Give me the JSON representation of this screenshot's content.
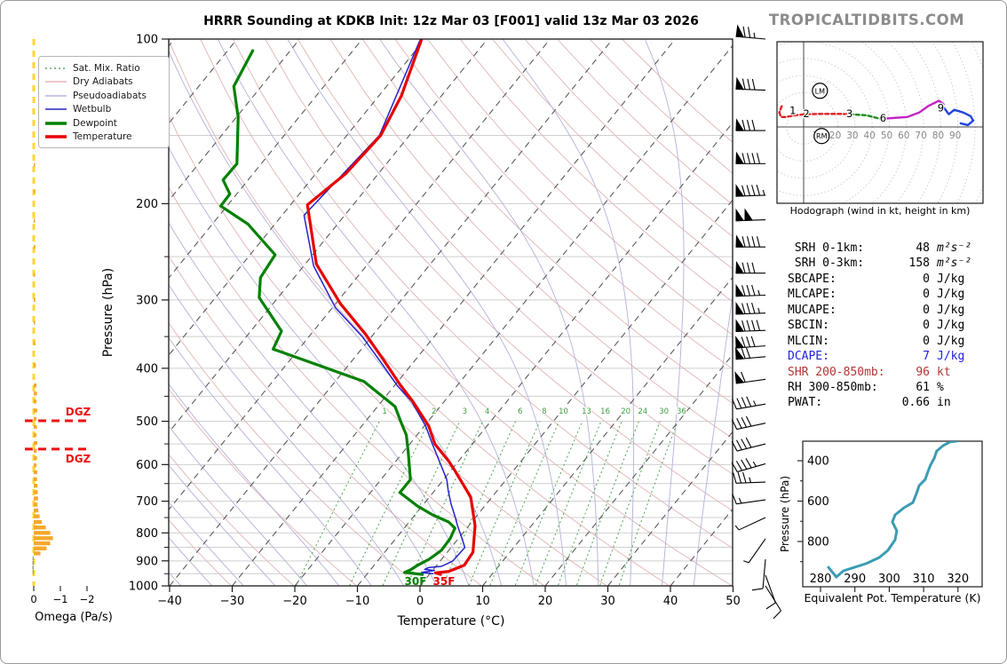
{
  "title": "HRRR Sounding at KDKB Init: 12z Mar 03 [F001] valid 13z Mar 03 2026",
  "watermark": "TROPICALTIDBITS.COM",
  "legend": {
    "items": [
      {
        "label": "Sat. Mix. Ratio",
        "color": "#3f9b3f",
        "style": "dotted",
        "width": 1.2
      },
      {
        "label": "Dry Adiabats",
        "color": "#e0a8a8",
        "style": "solid",
        "width": 1.2
      },
      {
        "label": "Pseudoadiabats",
        "color": "#a8a8d8",
        "style": "solid",
        "width": 1.2
      },
      {
        "label": "Wetbulb",
        "color": "#2222cc",
        "style": "solid",
        "width": 1.6
      },
      {
        "label": "Dewpoint",
        "color": "#008000",
        "style": "solid",
        "width": 3.4
      },
      {
        "label": "Temperature",
        "color": "#e60000",
        "style": "solid",
        "width": 3.4
      }
    ]
  },
  "stats": {
    "rows": [
      {
        "label": " SRH 0-1km:",
        "value": "48",
        "unit": "m²s⁻²",
        "color": "#000000",
        "unit_italic": true
      },
      {
        "label": " SRH 0-3km:",
        "value": "158",
        "unit": "m²s⁻²",
        "color": "#000000",
        "unit_italic": true
      },
      {
        "label": "SBCAPE:",
        "value": "0",
        "unit": "J/kg",
        "color": "#000000",
        "unit_italic": false
      },
      {
        "label": "MLCAPE:",
        "value": "0",
        "unit": "J/kg",
        "color": "#000000",
        "unit_italic": false
      },
      {
        "label": "MUCAPE:",
        "value": "0",
        "unit": "J/kg",
        "color": "#000000",
        "unit_italic": false
      },
      {
        "label": "SBCIN:",
        "value": "0",
        "unit": "J/kg",
        "color": "#000000",
        "unit_italic": false
      },
      {
        "label": "MLCIN:",
        "value": "0",
        "unit": "J/kg",
        "color": "#000000",
        "unit_italic": false
      },
      {
        "label": "DCAPE:",
        "value": "7",
        "unit": "J/kg",
        "color": "#2222dd",
        "unit_italic": false
      },
      {
        "label": "SHR 200-850mb:",
        "value": "96",
        "unit": "kt",
        "color": "#b03535",
        "unit_italic": false
      },
      {
        "label": "RH 300-850mb:",
        "value": "61",
        "unit": "%",
        "color": "#000000",
        "unit_italic": false
      },
      {
        "label": "PWAT:",
        "value": "0.66",
        "unit": "in",
        "color": "#000000",
        "unit_italic": false
      }
    ]
  },
  "chart_data": [
    {
      "id": "skewt",
      "type": "line",
      "title": "HRRR Sounding at KDKB Init: 12z Mar 03 [F001] valid 13z Mar 03 2026",
      "xlabel": "Temperature (°C)",
      "ylabel": "Pressure (hPa)",
      "x_ticks": [
        -40,
        -30,
        -20,
        -10,
        0,
        10,
        20,
        30,
        40,
        50
      ],
      "p_ticks": [
        100,
        200,
        300,
        400,
        500,
        600,
        700,
        800,
        900,
        1000
      ],
      "p_range": [
        100,
        1050
      ],
      "t_range": [
        -40,
        50
      ],
      "grid": true,
      "isotherm_step_C": 10,
      "dry_adiabat_theta_K": {
        "min": 233,
        "max": 453,
        "step": 10
      },
      "pseudoadiabat_start_C": {
        "min": -40,
        "max": 45,
        "step": 5
      },
      "mixing_ratio_gkg": [
        1,
        2,
        3,
        4,
        6,
        8,
        10,
        13,
        16,
        20,
        24,
        30,
        36
      ],
      "series": [
        {
          "name": "Temperature",
          "color": "#e60000",
          "width": 3.2,
          "points_p_T": [
            [
              100,
              -70.5
            ],
            [
              127,
              -66.4
            ],
            [
              150,
              -64.6
            ],
            [
              176,
              -65.2
            ],
            [
              201,
              -67.3
            ],
            [
              258,
              -58.2
            ],
            [
              305,
              -49.2
            ],
            [
              347,
              -41.2
            ],
            [
              388,
              -34.8
            ],
            [
              428,
              -29.3
            ],
            [
              461,
              -24.9
            ],
            [
              510,
              -19.3
            ],
            [
              550,
              -16.0
            ],
            [
              592,
              -11.5
            ],
            [
              615,
              -9.4
            ],
            [
              688,
              -3.4
            ],
            [
              776,
              1.0
            ],
            [
              868,
              4.1
            ],
            [
              917,
              4.4
            ],
            [
              941,
              2.7
            ],
            [
              947,
              0.8
            ],
            [
              953,
              1.8
            ]
          ]
        },
        {
          "name": "Dewpoint",
          "color": "#008000",
          "width": 3.2,
          "points_p_T": [
            [
              105,
              -96.0
            ],
            [
              122,
              -94.4
            ],
            [
              139,
              -89.7
            ],
            [
              169,
              -83.9
            ],
            [
              181,
              -84.0
            ],
            [
              192,
              -81.1
            ],
            [
              202,
              -81.0
            ],
            [
              218,
              -74.3
            ],
            [
              248,
              -66.0
            ],
            [
              273,
              -65.4
            ],
            [
              297,
              -63.0
            ],
            [
              342,
              -55.1
            ],
            [
              369,
              -54.1
            ],
            [
              400,
              -43.0
            ],
            [
              423,
              -35.4
            ],
            [
              470,
              -27.2
            ],
            [
              500,
              -24.4
            ],
            [
              530,
              -21.7
            ],
            [
              571,
              -19.1
            ],
            [
              639,
              -15.3
            ],
            [
              675,
              -15.3
            ],
            [
              714,
              -10.8
            ],
            [
              742,
              -7.1
            ],
            [
              764,
              -3.7
            ],
            [
              784,
              -1.9
            ],
            [
              820,
              -1.3
            ],
            [
              861,
              -1.2
            ],
            [
              894,
              -2.0
            ],
            [
              918,
              -3.1
            ],
            [
              935,
              -3.6
            ],
            [
              945,
              -4.2
            ],
            [
              953,
              -1.1
            ]
          ]
        },
        {
          "name": "Wetbulb",
          "color": "#2222cc",
          "width": 1.5,
          "points_p_T": [
            [
              100,
              -70.7
            ],
            [
              150,
              -64.8
            ],
            [
              210,
              -66.5
            ],
            [
              260,
              -58.4
            ],
            [
              310,
              -49.5
            ],
            [
              350,
              -41.5
            ],
            [
              390,
              -35.2
            ],
            [
              430,
              -29.6
            ],
            [
              460,
              -25.2
            ],
            [
              510,
              -19.8
            ],
            [
              550,
              -16.4
            ],
            [
              639,
              -9.5
            ],
            [
              670,
              -7.8
            ],
            [
              709,
              -5.6
            ],
            [
              750,
              -3.2
            ],
            [
              778,
              -1.7
            ],
            [
              814,
              0.3
            ],
            [
              851,
              2.2
            ],
            [
              901,
              2.0
            ],
            [
              921,
              0.9
            ],
            [
              926,
              -1.0
            ],
            [
              933,
              -1.4
            ],
            [
              937,
              0.3
            ],
            [
              945,
              -1.5
            ],
            [
              950,
              0.5
            ]
          ]
        }
      ],
      "surface_labels": [
        {
          "text": "30F",
          "color": "#008000"
        },
        {
          "text": "35F",
          "color": "#e60000"
        }
      ],
      "dgz_label": "DGZ",
      "dgz_lines_p": [
        499,
        562
      ]
    },
    {
      "id": "omega",
      "type": "bar",
      "xlabel": "Omega (Pa/s)",
      "x_ticks": [
        0,
        -1,
        -2
      ],
      "bar_color": "#f5a82d",
      "bar_color_positive": "#999999",
      "zero_line_color": "#ffd633",
      "points_p_omega": [
        [
          170,
          -0.05
        ],
        [
          190,
          -0.06
        ],
        [
          215,
          -0.05
        ],
        [
          240,
          -0.06
        ],
        [
          270,
          -0.05
        ],
        [
          300,
          -0.06
        ],
        [
          330,
          -0.05
        ],
        [
          360,
          -0.06
        ],
        [
          395,
          -0.08
        ],
        [
          430,
          -0.1
        ],
        [
          445,
          -0.12
        ],
        [
          460,
          -0.1
        ],
        [
          478,
          -0.13
        ],
        [
          495,
          -0.1
        ],
        [
          512,
          -0.12
        ],
        [
          530,
          -0.1
        ],
        [
          548,
          -0.13
        ],
        [
          566,
          -0.11
        ],
        [
          584,
          -0.12
        ],
        [
          602,
          -0.1
        ],
        [
          620,
          -0.13
        ],
        [
          638,
          -0.12
        ],
        [
          656,
          -0.14
        ],
        [
          674,
          -0.15
        ],
        [
          692,
          -0.16
        ],
        [
          710,
          -0.14
        ],
        [
          728,
          -0.17
        ],
        [
          746,
          -0.22
        ],
        [
          764,
          -0.3
        ],
        [
          782,
          -0.45
        ],
        [
          800,
          -0.62
        ],
        [
          818,
          -0.72
        ],
        [
          836,
          -0.62
        ],
        [
          854,
          -0.48
        ],
        [
          872,
          -0.25
        ],
        [
          890,
          0.04
        ],
        [
          908,
          0.05
        ],
        [
          926,
          0.05
        ],
        [
          944,
          0.04
        ]
      ]
    },
    {
      "id": "wind_barbs",
      "type": "barbs",
      "units": "kt",
      "levels": [
        {
          "p": 100,
          "spd": 75,
          "dir": 275
        },
        {
          "p": 124,
          "spd": 80,
          "dir": 272
        },
        {
          "p": 147,
          "spd": 80,
          "dir": 270
        },
        {
          "p": 169,
          "spd": 90,
          "dir": 270
        },
        {
          "p": 193,
          "spd": 95,
          "dir": 268
        },
        {
          "p": 214,
          "spd": 100,
          "dir": 268
        },
        {
          "p": 240,
          "spd": 90,
          "dir": 270
        },
        {
          "p": 268,
          "spd": 80,
          "dir": 270
        },
        {
          "p": 294,
          "spd": 85,
          "dir": 268
        },
        {
          "p": 317,
          "spd": 85,
          "dir": 268
        },
        {
          "p": 341,
          "spd": 90,
          "dir": 268
        },
        {
          "p": 364,
          "spd": 80,
          "dir": 266
        },
        {
          "p": 381,
          "spd": 70,
          "dir": 265
        },
        {
          "p": 419,
          "spd": 60,
          "dir": 262
        },
        {
          "p": 465,
          "spd": 45,
          "dir": 260
        },
        {
          "p": 504,
          "spd": 40,
          "dir": 258
        },
        {
          "p": 550,
          "spd": 40,
          "dir": 256
        },
        {
          "p": 598,
          "spd": 45,
          "dir": 254
        },
        {
          "p": 646,
          "spd": 35,
          "dir": 268
        },
        {
          "p": 696,
          "spd": 15,
          "dir": 262
        },
        {
          "p": 750,
          "spd": 5,
          "dir": 245
        },
        {
          "p": 820,
          "spd": 5,
          "dir": 215
        },
        {
          "p": 894,
          "spd": 10,
          "dir": 185
        },
        {
          "p": 956,
          "spd": 10,
          "dir": 160
        },
        {
          "p": 1000,
          "spd": 10,
          "dir": 148
        }
      ]
    },
    {
      "id": "hodograph",
      "type": "line",
      "caption": "Hodograph (wind in kt, height in km)",
      "units": "kt",
      "ring_step_kt": 10,
      "axis_labels_kt": [
        10,
        20,
        30,
        40,
        50,
        60,
        70,
        80,
        90
      ],
      "segments": [
        {
          "name": "0-3km",
          "color": "#e02020",
          "dashed": true,
          "points_uv": [
            [
              -12.8,
              12.1
            ],
            [
              -14.2,
              8.4
            ],
            [
              -13.2,
              5.8
            ],
            [
              -10.5,
              5.8
            ],
            [
              -5.3,
              6.8
            ],
            [
              1.6,
              7.4
            ],
            [
              10.5,
              7.6
            ],
            [
              21.1,
              7.6
            ],
            [
              26.8,
              7.4
            ]
          ]
        },
        {
          "name": "3-6km",
          "color": "#1f8c1f",
          "dashed": true,
          "points_uv": [
            [
              26.8,
              7.4
            ],
            [
              36.8,
              6.8
            ],
            [
              44.7,
              4.7
            ]
          ]
        },
        {
          "name": "6-9km",
          "color": "#c424c4",
          "dashed": false,
          "points_uv": [
            [
              44.7,
              4.7
            ],
            [
              60.5,
              5.8
            ],
            [
              67.4,
              8.4
            ],
            [
              72.6,
              12.1
            ],
            [
              78.9,
              15.3
            ],
            [
              81.6,
              13.2
            ]
          ]
        },
        {
          "name": "9km+",
          "color": "#2244dd",
          "dashed": false,
          "points_uv": [
            [
              81.6,
              11.6
            ],
            [
              84.7,
              7.4
            ],
            [
              87.9,
              10.0
            ],
            [
              93.2,
              8.4
            ],
            [
              97.4,
              6.3
            ],
            [
              98.9,
              3.7
            ],
            [
              95.8,
              1.1
            ],
            [
              91.6,
              2.1
            ]
          ]
        }
      ],
      "height_labels_km": [
        {
          "h": "1",
          "u": -6.3,
          "v": 9.5
        },
        {
          "h": "2",
          "u": 1.6,
          "v": 7.9
        },
        {
          "h": "3",
          "u": 26.8,
          "v": 7.9
        },
        {
          "h": "6",
          "u": 46.3,
          "v": 5.3
        },
        {
          "h": "9",
          "u": 80.0,
          "v": 11.1
        }
      ],
      "markers": [
        {
          "text": "LM",
          "u": 9.5,
          "v": 21.1
        },
        {
          "text": "RM",
          "u": 10.5,
          "v": -5.3
        }
      ]
    },
    {
      "id": "theta_e",
      "type": "line",
      "xlabel": "Equivalent Pot. Temperature (K)",
      "ylabel": "Pressure (hPa)",
      "x_ticks": [
        280,
        290,
        300,
        310,
        320
      ],
      "y_ticks_labeled": [
        400,
        600,
        800
      ],
      "y_ticks_minor": [
        500,
        700,
        900
      ],
      "color": "#3a9cb3",
      "points_K_p": [
        [
          319.8,
          303
        ],
        [
          317.7,
          307
        ],
        [
          315.7,
          325
        ],
        [
          313.8,
          352
        ],
        [
          313.1,
          387
        ],
        [
          312.0,
          422
        ],
        [
          311.2,
          457
        ],
        [
          310.5,
          492
        ],
        [
          308.7,
          523
        ],
        [
          307.9,
          563
        ],
        [
          306.9,
          607
        ],
        [
          304.3,
          633
        ],
        [
          301.7,
          668
        ],
        [
          300.9,
          703
        ],
        [
          302.2,
          747
        ],
        [
          301.7,
          791
        ],
        [
          299.6,
          844
        ],
        [
          297.1,
          879
        ],
        [
          293.2,
          910
        ],
        [
          286.7,
          945
        ],
        [
          284.6,
          976
        ],
        [
          282.3,
          928
        ]
      ]
    }
  ]
}
